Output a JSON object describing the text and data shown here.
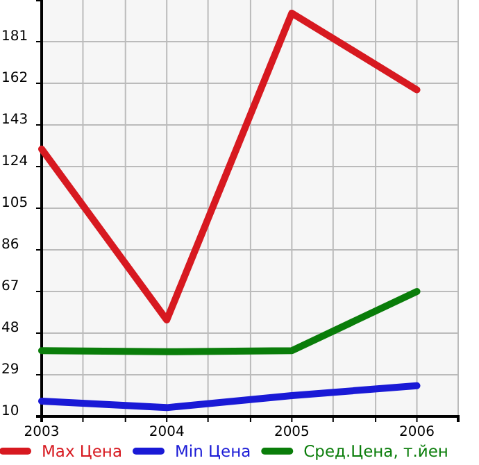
{
  "chart_data": {
    "type": "line",
    "x": [
      2003,
      2004,
      2005,
      2006
    ],
    "xlim": [
      2003,
      2006.33
    ],
    "xticks": [
      {
        "value": 2003,
        "label": "2003"
      },
      {
        "value": 2003.33,
        "label": null
      },
      {
        "value": 2003.67,
        "label": null
      },
      {
        "value": 2004,
        "label": "2004"
      },
      {
        "value": 2004.33,
        "label": null
      },
      {
        "value": 2004.67,
        "label": null
      },
      {
        "value": 2005,
        "label": "2005"
      },
      {
        "value": 2005.33,
        "label": null
      },
      {
        "value": 2005.67,
        "label": null
      },
      {
        "value": 2006,
        "label": "2006"
      },
      {
        "value": 2006.33,
        "label": null
      }
    ],
    "ylim": [
      10,
      200
    ],
    "yticks": [
      10,
      29,
      48,
      67,
      86,
      105,
      124,
      143,
      162,
      181
    ],
    "grid": true,
    "legend": "bottom",
    "marker": "none",
    "line_style": "solid",
    "series": [
      {
        "name": "Max Цена",
        "color": "#d71920",
        "values": [
          132,
          54,
          194,
          159
        ]
      },
      {
        "name": "Min Цена",
        "color": "#1a1ad6",
        "values": [
          17,
          14,
          19.5,
          24
        ]
      },
      {
        "name": "Сред.Цена, т.йен",
        "color": "#0a7d0a",
        "values": [
          40,
          39.5,
          40,
          67
        ]
      }
    ]
  }
}
